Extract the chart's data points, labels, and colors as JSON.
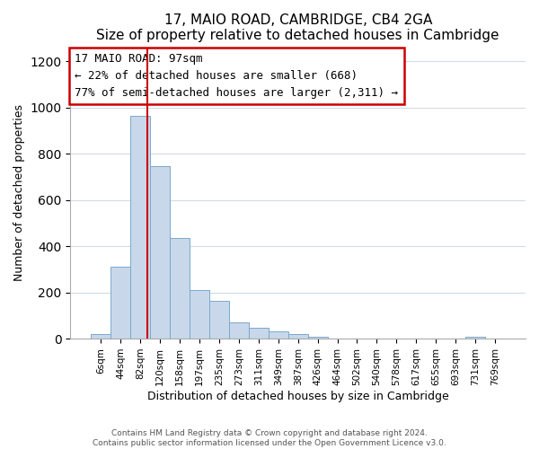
{
  "title": "17, MAIO ROAD, CAMBRIDGE, CB4 2GA",
  "subtitle": "Size of property relative to detached houses in Cambridge",
  "xlabel": "Distribution of detached houses by size in Cambridge",
  "ylabel": "Number of detached properties",
  "bar_labels": [
    "6sqm",
    "44sqm",
    "82sqm",
    "120sqm",
    "158sqm",
    "197sqm",
    "235sqm",
    "273sqm",
    "311sqm",
    "349sqm",
    "387sqm",
    "426sqm",
    "464sqm",
    "502sqm",
    "540sqm",
    "578sqm",
    "617sqm",
    "655sqm",
    "693sqm",
    "731sqm",
    "769sqm"
  ],
  "bar_heights": [
    20,
    310,
    965,
    745,
    435,
    210,
    163,
    72,
    47,
    33,
    18,
    9,
    0,
    0,
    0,
    0,
    0,
    0,
    0,
    9,
    0
  ],
  "bar_color": "#c8d8ea",
  "bar_edge_color": "#7aa8cc",
  "vline_x_index": 2,
  "vline_x_offset": 0.35,
  "vline_color": "#cc0000",
  "annotation_title": "17 MAIO ROAD: 97sqm",
  "annotation_line1": "← 22% of detached houses are smaller (668)",
  "annotation_line2": "77% of semi-detached houses are larger (2,311) →",
  "annotation_box_color": "#ffffff",
  "annotation_box_edge": "#cc0000",
  "ylim": [
    0,
    1260
  ],
  "yticks": [
    0,
    200,
    400,
    600,
    800,
    1000,
    1200
  ],
  "grid_color": "#d0dce8",
  "footer_line1": "Contains HM Land Registry data © Crown copyright and database right 2024.",
  "footer_line2": "Contains public sector information licensed under the Open Government Licence v3.0."
}
